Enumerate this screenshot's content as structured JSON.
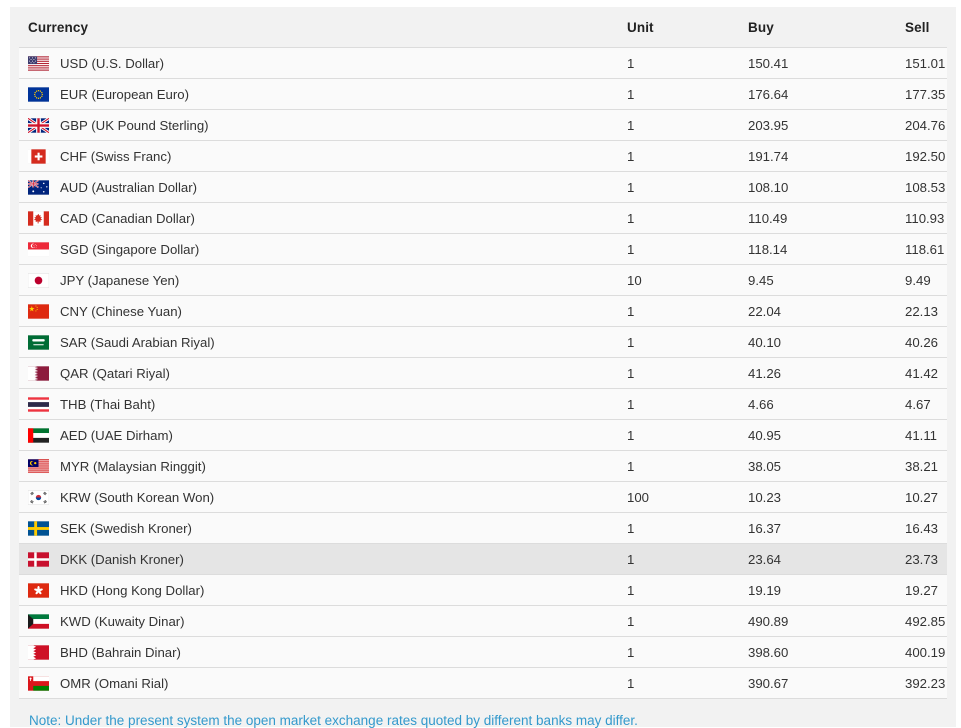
{
  "table": {
    "headers": {
      "currency": "Currency",
      "unit": "Unit",
      "buy": "Buy",
      "sell": "Sell"
    },
    "rows": [
      {
        "flag": "us",
        "label": "USD (U.S. Dollar)",
        "unit": "1",
        "buy": "150.41",
        "sell": "151.01",
        "highlighted": false
      },
      {
        "flag": "eu",
        "label": "EUR (European Euro)",
        "unit": "1",
        "buy": "176.64",
        "sell": "177.35",
        "highlighted": false
      },
      {
        "flag": "gb",
        "label": "GBP (UK Pound Sterling)",
        "unit": "1",
        "buy": "203.95",
        "sell": "204.76",
        "highlighted": false
      },
      {
        "flag": "ch",
        "label": "CHF (Swiss Franc)",
        "unit": "1",
        "buy": "191.74",
        "sell": "192.50",
        "highlighted": false
      },
      {
        "flag": "au",
        "label": "AUD (Australian Dollar)",
        "unit": "1",
        "buy": "108.10",
        "sell": "108.53",
        "highlighted": false
      },
      {
        "flag": "ca",
        "label": "CAD (Canadian Dollar)",
        "unit": "1",
        "buy": "110.49",
        "sell": "110.93",
        "highlighted": false
      },
      {
        "flag": "sg",
        "label": "SGD (Singapore Dollar)",
        "unit": "1",
        "buy": "118.14",
        "sell": "118.61",
        "highlighted": false
      },
      {
        "flag": "jp",
        "label": "JPY (Japanese Yen)",
        "unit": "10",
        "buy": "9.45",
        "sell": "9.49",
        "highlighted": false
      },
      {
        "flag": "cn",
        "label": "CNY (Chinese Yuan)",
        "unit": "1",
        "buy": "22.04",
        "sell": "22.13",
        "highlighted": false
      },
      {
        "flag": "sa",
        "label": "SAR (Saudi Arabian Riyal)",
        "unit": "1",
        "buy": "40.10",
        "sell": "40.26",
        "highlighted": false
      },
      {
        "flag": "qa",
        "label": "QAR (Qatari Riyal)",
        "unit": "1",
        "buy": "41.26",
        "sell": "41.42",
        "highlighted": false
      },
      {
        "flag": "th",
        "label": "THB (Thai Baht)",
        "unit": "1",
        "buy": "4.66",
        "sell": "4.67",
        "highlighted": false
      },
      {
        "flag": "ae",
        "label": "AED (UAE Dirham)",
        "unit": "1",
        "buy": "40.95",
        "sell": "41.11",
        "highlighted": false
      },
      {
        "flag": "my",
        "label": "MYR (Malaysian Ringgit)",
        "unit": "1",
        "buy": "38.05",
        "sell": "38.21",
        "highlighted": false
      },
      {
        "flag": "kr",
        "label": "KRW (South Korean Won)",
        "unit": "100",
        "buy": "10.23",
        "sell": "10.27",
        "highlighted": false
      },
      {
        "flag": "se",
        "label": "SEK (Swedish Kroner)",
        "unit": "1",
        "buy": "16.37",
        "sell": "16.43",
        "highlighted": false
      },
      {
        "flag": "dk",
        "label": "DKK (Danish Kroner)",
        "unit": "1",
        "buy": "23.64",
        "sell": "23.73",
        "highlighted": true
      },
      {
        "flag": "hk",
        "label": "HKD (Hong Kong Dollar)",
        "unit": "1",
        "buy": "19.19",
        "sell": "19.27",
        "highlighted": false
      },
      {
        "flag": "kw",
        "label": "KWD (Kuwaity Dinar)",
        "unit": "1",
        "buy": "490.89",
        "sell": "492.85",
        "highlighted": false
      },
      {
        "flag": "bh",
        "label": "BHD (Bahrain Dinar)",
        "unit": "1",
        "buy": "398.60",
        "sell": "400.19",
        "highlighted": false
      },
      {
        "flag": "om",
        "label": "OMR (Omani Rial)",
        "unit": "1",
        "buy": "390.67",
        "sell": "392.23",
        "highlighted": false
      }
    ]
  },
  "note": {
    "text": "Note: Under the present system the open market exchange rates quoted by different banks may differ."
  },
  "colors": {
    "panel_bg": "#f2f2f2",
    "row_bg": "#fafafa",
    "row_highlight": "#e5e5e5",
    "separator": "#dcdcdc",
    "note_text": "#3399cc",
    "header_text": "#222222",
    "cell_text": "#333333"
  }
}
